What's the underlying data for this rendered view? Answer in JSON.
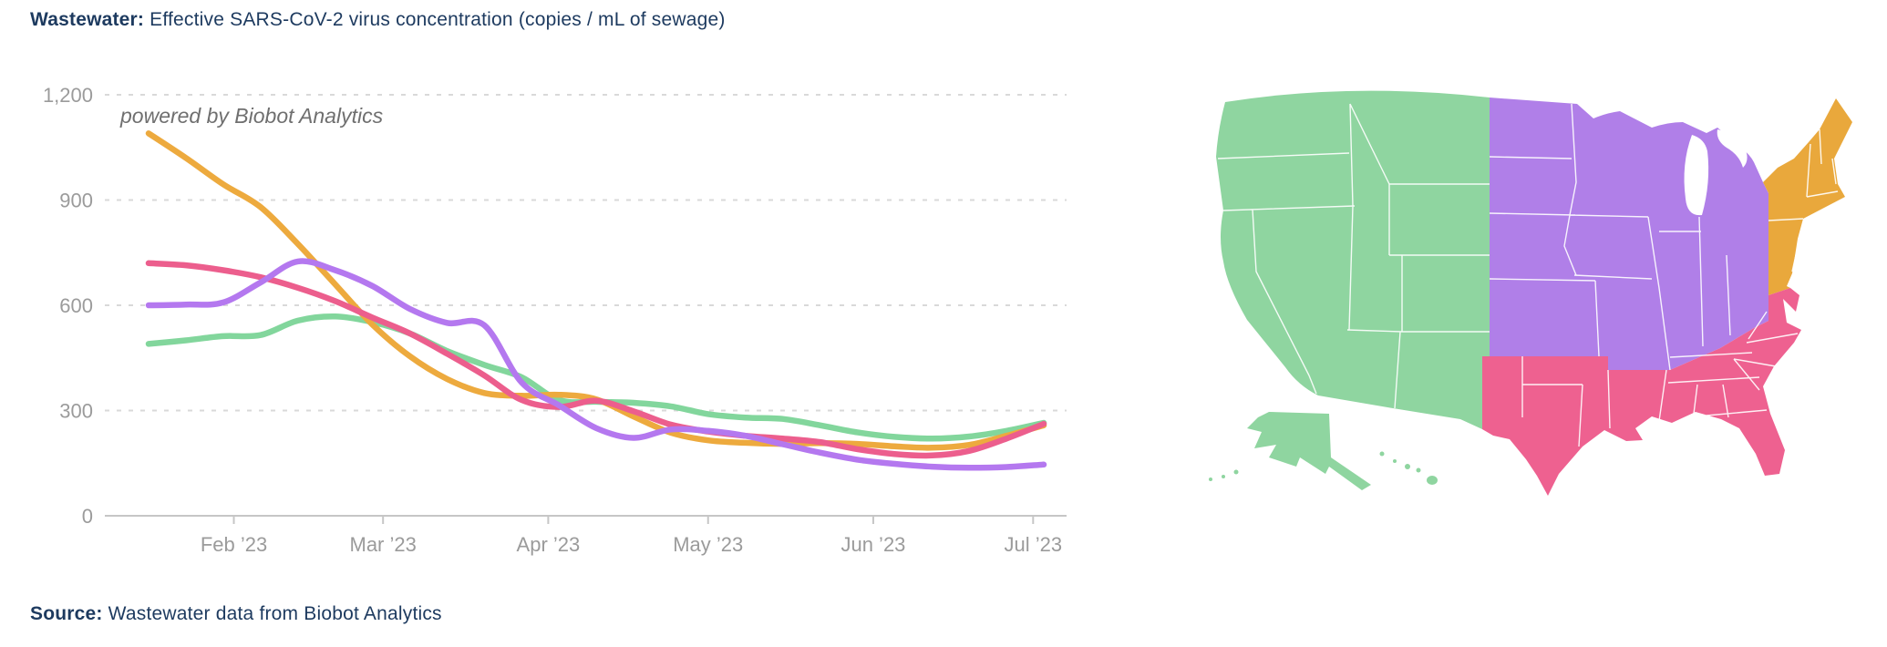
{
  "title": {
    "label": "Wastewater:",
    "rest": " Effective SARS-CoV-2 virus concentration (copies / mL of sewage)"
  },
  "source": {
    "label": "Source:",
    "rest": " Wastewater data from Biobot Analytics"
  },
  "chart_data": {
    "type": "line",
    "title": "Wastewater: Effective SARS-CoV-2 virus concentration (copies / mL of sewage)",
    "watermark": "powered by Biobot Analytics",
    "grid": "dashed-horizontal",
    "legend": "none (series keyed to map region colors)",
    "ylim": [
      0,
      1200
    ],
    "y_ticks": [
      {
        "label": "0",
        "value": 0
      },
      {
        "label": "300",
        "value": 300
      },
      {
        "label": "600",
        "value": 600
      },
      {
        "label": "900",
        "value": 900
      },
      {
        "label": "1,200",
        "value": 1200
      }
    ],
    "x_days": [
      0,
      7,
      14,
      21,
      28,
      35,
      42,
      49,
      56,
      63,
      70,
      77,
      84,
      91,
      98,
      105,
      112,
      119,
      126,
      133,
      140,
      147,
      154,
      161,
      168
    ],
    "x_range_days": [
      0,
      168
    ],
    "month_ticks": [
      {
        "label": "Feb ’23",
        "day": 16
      },
      {
        "label": "Mar ’23",
        "day": 44
      },
      {
        "label": "Apr ’23",
        "day": 75
      },
      {
        "label": "May ’23",
        "day": 105
      },
      {
        "label": "Jun ’23",
        "day": 136
      },
      {
        "label": "Jul ’23",
        "day": 166
      }
    ],
    "series": [
      {
        "key": "west",
        "name": "West",
        "color": "#82d69c",
        "values": [
          490,
          500,
          512,
          515,
          556,
          568,
          552,
          520,
          470,
          430,
          395,
          330,
          325,
          322,
          312,
          290,
          280,
          276,
          258,
          238,
          225,
          220,
          226,
          242,
          265
        ]
      },
      {
        "key": "northeast",
        "name": "Northeast",
        "color": "#edaa3e",
        "values": [
          1090,
          1020,
          945,
          880,
          775,
          660,
          545,
          455,
          390,
          350,
          342,
          345,
          332,
          283,
          237,
          215,
          208,
          205,
          207,
          205,
          198,
          194,
          202,
          228,
          258
        ]
      },
      {
        "key": "south",
        "name": "South",
        "color": "#ec5e8d",
        "values": [
          720,
          714,
          700,
          680,
          650,
          612,
          565,
          520,
          462,
          400,
          330,
          310,
          328,
          298,
          260,
          240,
          228,
          220,
          210,
          190,
          176,
          172,
          185,
          220,
          262
        ]
      },
      {
        "key": "midwest",
        "name": "Midwest",
        "color": "#b478ef",
        "values": [
          600,
          602,
          608,
          665,
          725,
          700,
          655,
          590,
          550,
          543,
          380,
          315,
          250,
          222,
          246,
          242,
          228,
          204,
          180,
          160,
          148,
          140,
          137,
          139,
          146
        ]
      }
    ]
  },
  "map": {
    "border_color": "#ffffff",
    "regions": [
      {
        "key": "west",
        "name": "West",
        "color": "#8fd5a0"
      },
      {
        "key": "midwest",
        "name": "Midwest",
        "color": "#b07fe8"
      },
      {
        "key": "northeast",
        "name": "Northeast",
        "color": "#e9a83c"
      },
      {
        "key": "south",
        "name": "South",
        "color": "#ee6190"
      }
    ]
  }
}
